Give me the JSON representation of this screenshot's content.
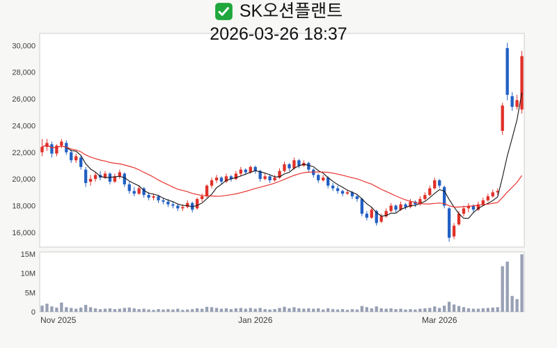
{
  "header": {
    "title": "SK오션플랜트",
    "datetime": "2026-03-26 18:37",
    "check_icon_color": "#1fa73d"
  },
  "chart_data": {
    "type": "candlestick+volume",
    "title": "SK오션플랜트",
    "as_of": "2026-03-26 18:37",
    "grid": false,
    "legend": "none",
    "price_axis": {
      "min": 14900,
      "max": 30900,
      "ticks": [
        16000,
        18000,
        20000,
        22000,
        24000,
        26000,
        28000,
        30000
      ]
    },
    "volume_axis": {
      "min": 0,
      "max": 15.5,
      "unit": "millions",
      "ticks": [
        {
          "v": 0,
          "label": "0"
        },
        {
          "v": 5,
          "label": "5M"
        },
        {
          "v": 10,
          "label": "10M"
        },
        {
          "v": 15,
          "label": "15M"
        }
      ]
    },
    "x_ticks": [
      {
        "index": 0,
        "label": "Nov 2025"
      },
      {
        "index": 44,
        "label": "Jan 2026"
      },
      {
        "index": 82,
        "label": "Mar 2026"
      }
    ],
    "colors": {
      "up": "#e03028",
      "down": "#2160c4",
      "ma_short": "#111111",
      "ma_long": "#e8322e",
      "volume": "#97a0b4",
      "panel_bg": "#ffffff",
      "panel_border": "#cccccc",
      "page_bg": "#f7f8f5",
      "tick_text": "#3c3c3c"
    },
    "moving_averages": [
      {
        "name": "MA5",
        "window": 5,
        "color_key": "ma_short",
        "stroke_width": 1.1
      },
      {
        "name": "MA20",
        "window": 20,
        "color_key": "ma_long",
        "stroke_width": 1.2
      }
    ],
    "candles_format": [
      "open",
      "high",
      "low",
      "close",
      "volume_millions"
    ],
    "candles": [
      [
        22000,
        23000,
        21700,
        22400,
        1.6
      ],
      [
        22400,
        23000,
        22100,
        22700,
        2.1
      ],
      [
        22600,
        22800,
        21600,
        21900,
        1.4
      ],
      [
        21900,
        22600,
        21700,
        22500,
        1.1
      ],
      [
        22500,
        23000,
        22300,
        22800,
        2.4
      ],
      [
        22700,
        22900,
        21800,
        22000,
        1.2
      ],
      [
        22000,
        22200,
        21200,
        21400,
        1.0
      ],
      [
        21400,
        21900,
        21200,
        21700,
        0.8
      ],
      [
        21600,
        21800,
        20700,
        20900,
        1.1
      ],
      [
        20700,
        20900,
        19400,
        19700,
        1.8
      ],
      [
        19800,
        20300,
        19500,
        20000,
        1.2
      ],
      [
        20000,
        20500,
        19800,
        20300,
        0.9
      ],
      [
        20300,
        20600,
        19900,
        20100,
        0.7
      ],
      [
        20100,
        20600,
        20000,
        20400,
        0.8
      ],
      [
        20400,
        20500,
        19600,
        19800,
        0.9
      ],
      [
        19800,
        20400,
        19700,
        20200,
        0.7
      ],
      [
        20200,
        20700,
        20000,
        20500,
        0.8
      ],
      [
        20400,
        20500,
        19400,
        19600,
        1.0
      ],
      [
        19600,
        19800,
        18900,
        19100,
        1.1
      ],
      [
        19100,
        19400,
        18700,
        18900,
        0.9
      ],
      [
        18900,
        19500,
        18800,
        19300,
        0.7
      ],
      [
        19300,
        19400,
        18600,
        18800,
        0.8
      ],
      [
        18800,
        19000,
        18400,
        18600,
        0.6
      ],
      [
        18600,
        18900,
        18400,
        18700,
        0.5
      ],
      [
        18700,
        18800,
        18200,
        18400,
        0.7
      ],
      [
        18400,
        18600,
        18100,
        18300,
        0.6
      ],
      [
        18300,
        18500,
        17900,
        18100,
        0.7
      ],
      [
        18100,
        18300,
        17800,
        18000,
        0.6
      ],
      [
        18000,
        18100,
        17600,
        17800,
        0.8
      ],
      [
        17800,
        18100,
        17600,
        17900,
        0.5
      ],
      [
        17900,
        18400,
        17800,
        18200,
        0.6
      ],
      [
        18200,
        18300,
        17500,
        17700,
        0.7
      ],
      [
        17800,
        18600,
        17700,
        18500,
        0.9
      ],
      [
        18500,
        18900,
        18300,
        18700,
        0.8
      ],
      [
        18700,
        19600,
        18600,
        19500,
        1.3
      ],
      [
        19500,
        20100,
        19300,
        19900,
        1.2
      ],
      [
        19900,
        20300,
        19700,
        20100,
        1.0
      ],
      [
        20100,
        20200,
        19600,
        19800,
        0.8
      ],
      [
        19800,
        20400,
        19700,
        20200,
        0.9
      ],
      [
        20200,
        20300,
        19800,
        20000,
        0.7
      ],
      [
        20000,
        20600,
        19900,
        20400,
        0.9
      ],
      [
        20400,
        20900,
        20200,
        20700,
        1.0
      ],
      [
        20700,
        20800,
        20300,
        20500,
        0.8
      ],
      [
        20500,
        21000,
        20400,
        20900,
        1.0
      ],
      [
        20900,
        21000,
        20400,
        20600,
        0.8
      ],
      [
        20600,
        20700,
        19800,
        20000,
        1.0
      ],
      [
        20000,
        20400,
        19900,
        20200,
        0.7
      ],
      [
        20200,
        20300,
        19700,
        19900,
        0.6
      ],
      [
        19900,
        20300,
        19800,
        20100,
        0.7
      ],
      [
        20100,
        20800,
        20000,
        20600,
        1.0
      ],
      [
        20600,
        21300,
        20500,
        21100,
        1.3
      ],
      [
        21100,
        21200,
        20600,
        20800,
        0.9
      ],
      [
        20800,
        21600,
        20700,
        21400,
        1.2
      ],
      [
        21400,
        21500,
        20800,
        21000,
        0.9
      ],
      [
        21000,
        21400,
        20900,
        21200,
        0.8
      ],
      [
        21200,
        21300,
        20500,
        20700,
        0.9
      ],
      [
        20700,
        20800,
        20100,
        20300,
        0.8
      ],
      [
        20300,
        20400,
        19700,
        19900,
        0.9
      ],
      [
        19900,
        20300,
        19800,
        20100,
        0.6
      ],
      [
        20100,
        20200,
        19300,
        19500,
        0.9
      ],
      [
        19500,
        19700,
        19100,
        19300,
        0.7
      ],
      [
        19300,
        19500,
        18900,
        19100,
        0.6
      ],
      [
        19100,
        19200,
        18700,
        18900,
        0.7
      ],
      [
        18900,
        19200,
        18800,
        19000,
        0.5
      ],
      [
        19000,
        19100,
        18500,
        18700,
        0.7
      ],
      [
        18700,
        18800,
        18300,
        18500,
        0.6
      ],
      [
        18500,
        18600,
        17200,
        17400,
        1.5
      ],
      [
        17400,
        17600,
        16900,
        17100,
        1.2
      ],
      [
        17100,
        17900,
        17000,
        17700,
        0.9
      ],
      [
        17600,
        17700,
        16500,
        16700,
        1.4
      ],
      [
        16800,
        17400,
        16700,
        17200,
        0.9
      ],
      [
        17200,
        17800,
        17100,
        17600,
        0.8
      ],
      [
        17600,
        18200,
        17500,
        18000,
        0.9
      ],
      [
        18000,
        18100,
        17500,
        17700,
        0.7
      ],
      [
        17700,
        18300,
        17600,
        18100,
        0.8
      ],
      [
        18100,
        18200,
        17700,
        17900,
        0.6
      ],
      [
        17900,
        18500,
        17800,
        18300,
        0.7
      ],
      [
        18300,
        18400,
        17900,
        18100,
        0.6
      ],
      [
        18100,
        18700,
        18000,
        18500,
        0.8
      ],
      [
        18500,
        19000,
        18400,
        18800,
        0.9
      ],
      [
        18800,
        19500,
        18700,
        19300,
        1.0
      ],
      [
        19300,
        20100,
        19200,
        19900,
        1.4
      ],
      [
        19900,
        20000,
        19300,
        19500,
        1.0
      ],
      [
        19400,
        19500,
        17800,
        18000,
        1.6
      ],
      [
        17800,
        17900,
        15300,
        15600,
        2.6
      ],
      [
        15700,
        16700,
        15500,
        16500,
        1.9
      ],
      [
        16600,
        17600,
        16500,
        17400,
        1.5
      ],
      [
        17400,
        18000,
        17200,
        17800,
        1.2
      ],
      [
        17800,
        18200,
        17500,
        18000,
        0.9
      ],
      [
        18000,
        18100,
        17500,
        17700,
        0.8
      ],
      [
        17700,
        18300,
        17600,
        18100,
        0.8
      ],
      [
        18100,
        18600,
        18000,
        18400,
        0.9
      ],
      [
        18400,
        18900,
        18300,
        18700,
        1.0
      ],
      [
        18700,
        19200,
        18600,
        19000,
        1.1
      ],
      [
        19000,
        19300,
        18800,
        19100,
        1.2
      ],
      [
        23600,
        25700,
        23300,
        25500,
        11.8
      ],
      [
        29800,
        30200,
        25900,
        26300,
        13.0
      ],
      [
        26200,
        26500,
        25100,
        25400,
        4.1
      ],
      [
        25400,
        26300,
        25200,
        25900,
        3.3
      ],
      [
        25200,
        29600,
        24900,
        29200,
        14.9
      ]
    ]
  }
}
